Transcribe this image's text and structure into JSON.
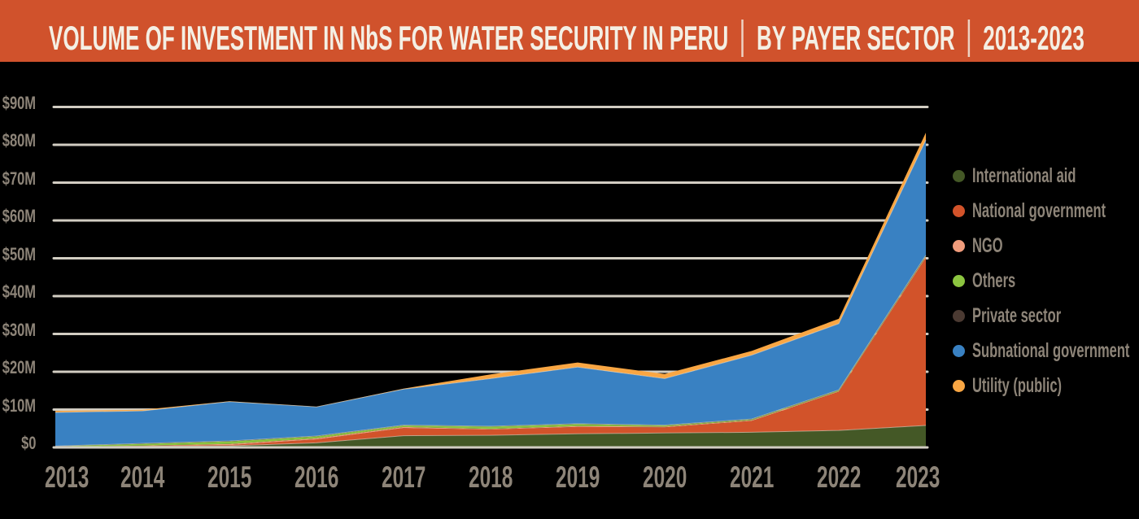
{
  "banner": {
    "title_parts": [
      "VOLUME OF INVESTMENT IN NbS FOR WATER SECURITY IN PERU",
      "BY PAYER SECTOR",
      "2013-2023"
    ],
    "background": "#D0522C",
    "text_color": "#F4EFE4"
  },
  "chart_data": {
    "type": "area",
    "stacked": true,
    "title": "VOLUME OF INVESTMENT IN NbS FOR WATER SECURITY IN PERU | BY PAYER SECTOR | 2013-2023",
    "x": [
      "2013",
      "2014",
      "2015",
      "2016",
      "2017",
      "2018",
      "2019",
      "2020",
      "2021",
      "2022",
      "2023"
    ],
    "series": [
      {
        "name": "International aid",
        "color": "#445826",
        "values": [
          0.15,
          0.3,
          0.4,
          1.2,
          3.1,
          3.2,
          3.6,
          3.8,
          4.0,
          4.5,
          5.8
        ]
      },
      {
        "name": "National government",
        "color": "#D2532A",
        "values": [
          0.0,
          0.1,
          0.2,
          0.9,
          2.0,
          1.5,
          1.8,
          1.5,
          3.0,
          10.2,
          44.3
        ]
      },
      {
        "name": "NGO",
        "color": "#F19C7C",
        "values": [
          0.0,
          0.1,
          0.3,
          0.3,
          0.3,
          0.2,
          0.25,
          0.2,
          0.2,
          0.2,
          0.3
        ]
      },
      {
        "name": "Others",
        "color": "#8CC540",
        "values": [
          0.15,
          0.45,
          0.7,
          0.5,
          0.4,
          0.6,
          0.5,
          0.3,
          0.2,
          0.2,
          0.2
        ]
      },
      {
        "name": "Private sector",
        "color": "#4B3A32",
        "values": [
          0.05,
          0.1,
          0.1,
          0.1,
          0.1,
          0.1,
          0.1,
          0.1,
          0.1,
          0.1,
          0.2
        ]
      },
      {
        "name": "Subnational government",
        "color": "#3981C2",
        "values": [
          8.9,
          8.6,
          10.4,
          7.7,
          9.5,
          12.6,
          15.0,
          12.3,
          16.9,
          17.5,
          30.5
        ]
      },
      {
        "name": "Utility (public)",
        "color": "#F9A643",
        "values": [
          0.4,
          0.3,
          0.1,
          0.05,
          0.15,
          1.1,
          1.2,
          1.2,
          1.1,
          1.3,
          1.9
        ]
      }
    ],
    "y_ticks": {
      "labels": [
        "$0",
        "$10M",
        "$20M",
        "$30M",
        "$40M",
        "$50M",
        "$60M",
        "$70M",
        "$80M",
        "$90M"
      ],
      "values": [
        0,
        10,
        20,
        30,
        40,
        50,
        60,
        70,
        80,
        90
      ]
    },
    "ylim": [
      0,
      90
    ],
    "grid": "horizontal",
    "legend_position": "right",
    "background": "#000000",
    "axis_text_color": "#8D8478",
    "gridline_color": "#D2CDC2",
    "boundary_stroke_color": "#E9E3D7"
  }
}
